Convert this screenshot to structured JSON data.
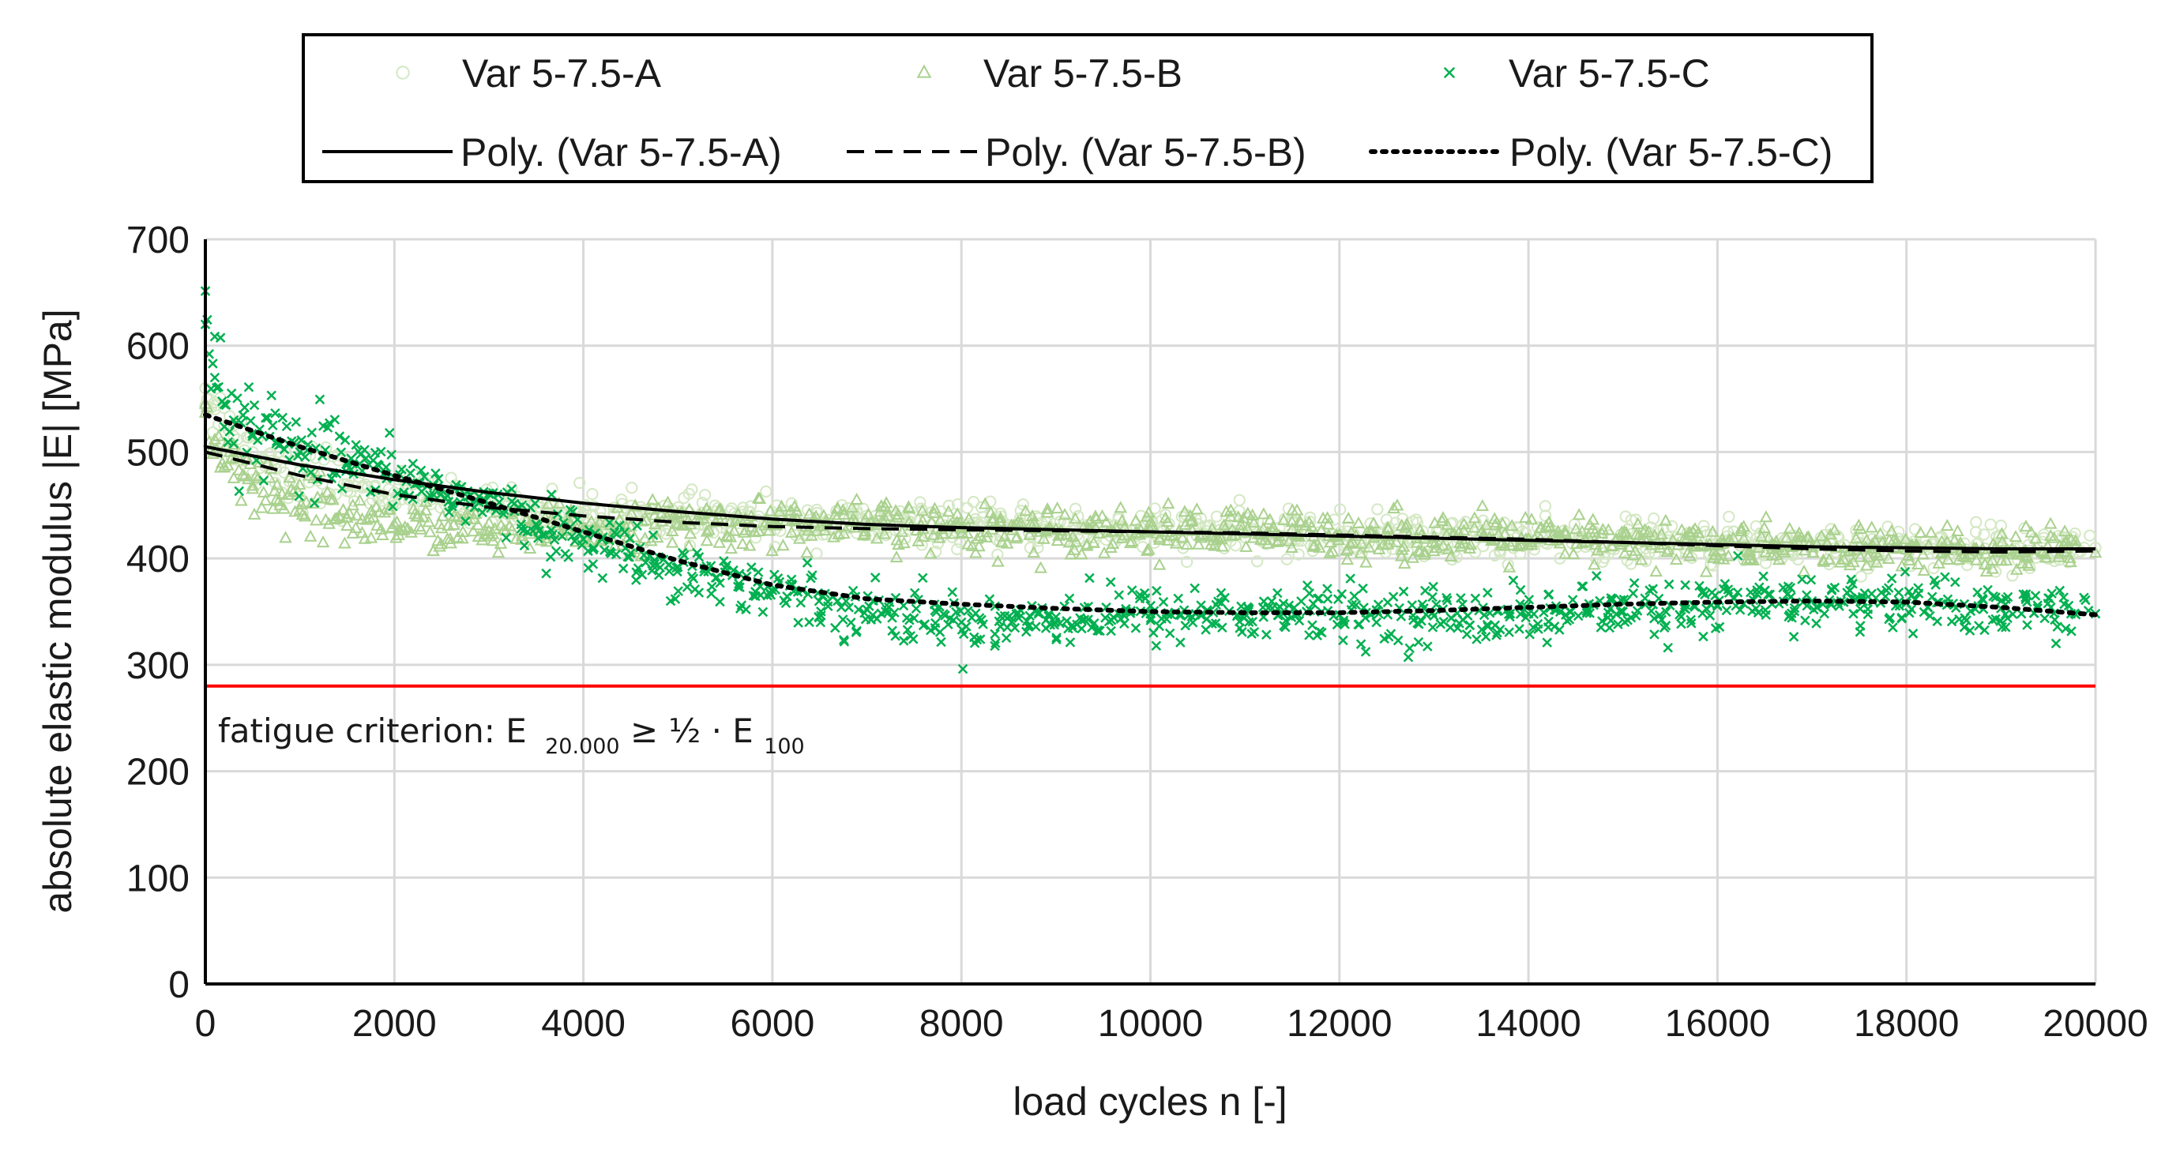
{
  "chart_data": {
    "type": "scatter",
    "title": "",
    "xlabel": "load cycles n [-]",
    "ylabel": "absolute elastic modulus |E| [MPa]",
    "xlim": [
      0,
      20000
    ],
    "ylim": [
      0,
      700
    ],
    "x_ticks": [
      0,
      2000,
      4000,
      6000,
      8000,
      10000,
      12000,
      14000,
      16000,
      18000,
      20000
    ],
    "y_ticks": [
      0,
      100,
      200,
      300,
      400,
      500,
      600,
      700
    ],
    "grid": true,
    "legend_position": "top",
    "series": [
      {
        "name": "Var 5-7.5-A",
        "marker": "circle",
        "color": "#d4e8c4",
        "x": [
          0,
          100,
          200,
          300,
          500,
          750,
          1000,
          1500,
          2000,
          2500,
          3000,
          3500,
          4000,
          4500,
          5000,
          6000,
          7000,
          8000,
          9000,
          10000,
          11000,
          12000,
          13000,
          14000,
          15000,
          16000,
          17000,
          18000,
          19000,
          20000
        ],
        "values": [
          560,
          540,
          525,
          515,
          500,
          490,
          482,
          470,
          462,
          455,
          450,
          445,
          442,
          440,
          438,
          435,
          432,
          430,
          428,
          426,
          424,
          422,
          420,
          418,
          416,
          414,
          412,
          411,
          410,
          410
        ]
      },
      {
        "name": "Var 5-7.5-B",
        "marker": "triangle",
        "color": "#a9d18e",
        "x": [
          0,
          100,
          200,
          300,
          500,
          750,
          1000,
          1500,
          2000,
          2500,
          3000,
          3500,
          4000,
          4500,
          5000,
          6000,
          7000,
          8000,
          9000,
          10000,
          11000,
          12000,
          13000,
          14000,
          15000,
          16000,
          17000,
          18000,
          19000,
          20000
        ],
        "values": [
          545,
          500,
          485,
          475,
          465,
          455,
          445,
          438,
          432,
          428,
          425,
          425,
          428,
          430,
          432,
          432,
          430,
          428,
          427,
          426,
          424,
          422,
          420,
          418,
          415,
          412,
          410,
          408,
          406,
          405
        ]
      },
      {
        "name": "Var 5-7.5-C",
        "marker": "x",
        "color": "#00b050",
        "x": [
          0,
          100,
          200,
          300,
          500,
          750,
          1000,
          1500,
          2000,
          2500,
          3000,
          3500,
          4000,
          4500,
          5000,
          6000,
          7000,
          8000,
          9000,
          10000,
          11000,
          12000,
          13000,
          14000,
          15000,
          16000,
          17000,
          18000,
          19000,
          20000
        ],
        "values": [
          620,
          570,
          545,
          530,
          515,
          508,
          500,
          488,
          476,
          464,
          450,
          432,
          418,
          405,
          392,
          370,
          352,
          340,
          345,
          348,
          348,
          347,
          346,
          348,
          350,
          355,
          360,
          358,
          353,
          348
        ]
      }
    ],
    "trendlines": [
      {
        "name": "Poly. (Var 5-7.5-A)",
        "style": "solid",
        "color": "#000000",
        "x": [
          0,
          1000,
          2000,
          3000,
          4000,
          5000,
          6000,
          7000,
          8000,
          9000,
          10000,
          11000,
          12000,
          13000,
          14000,
          15000,
          16000,
          17000,
          18000,
          19000,
          20000
        ],
        "values": [
          505,
          488,
          474,
          462,
          452,
          444,
          437,
          432,
          429,
          427,
          425,
          423,
          421,
          419,
          417,
          415,
          413,
          411,
          410,
          409,
          409
        ]
      },
      {
        "name": "Poly. (Var 5-7.5-B)",
        "style": "dashed",
        "color": "#000000",
        "x": [
          0,
          1000,
          2000,
          3000,
          4000,
          5000,
          6000,
          7000,
          8000,
          9000,
          10000,
          11000,
          12000,
          13000,
          14000,
          15000,
          16000,
          17000,
          18000,
          19000,
          20000
        ],
        "values": [
          500,
          478,
          460,
          448,
          440,
          434,
          430,
          428,
          427,
          426,
          425,
          424,
          422,
          420,
          418,
          415,
          412,
          409,
          407,
          406,
          407
        ]
      },
      {
        "name": "Poly. (Var 5-7.5-C)",
        "style": "dotted",
        "color": "#000000",
        "x": [
          0,
          1000,
          2000,
          3000,
          4000,
          5000,
          6000,
          7000,
          8000,
          9000,
          10000,
          11000,
          12000,
          13000,
          14000,
          15000,
          16000,
          17000,
          18000,
          19000,
          20000
        ],
        "values": [
          535,
          505,
          478,
          452,
          425,
          398,
          375,
          362,
          357,
          353,
          350,
          349,
          349,
          351,
          354,
          357,
          359,
          360,
          359,
          354,
          347
        ]
      }
    ],
    "reference_line": {
      "y": 280,
      "color": "#ff0000"
    },
    "annotation": {
      "text": "fatigue criterion: E",
      "sub1": "20.000",
      "mid": " ≥ ½ · E",
      "sub2": "100"
    }
  }
}
